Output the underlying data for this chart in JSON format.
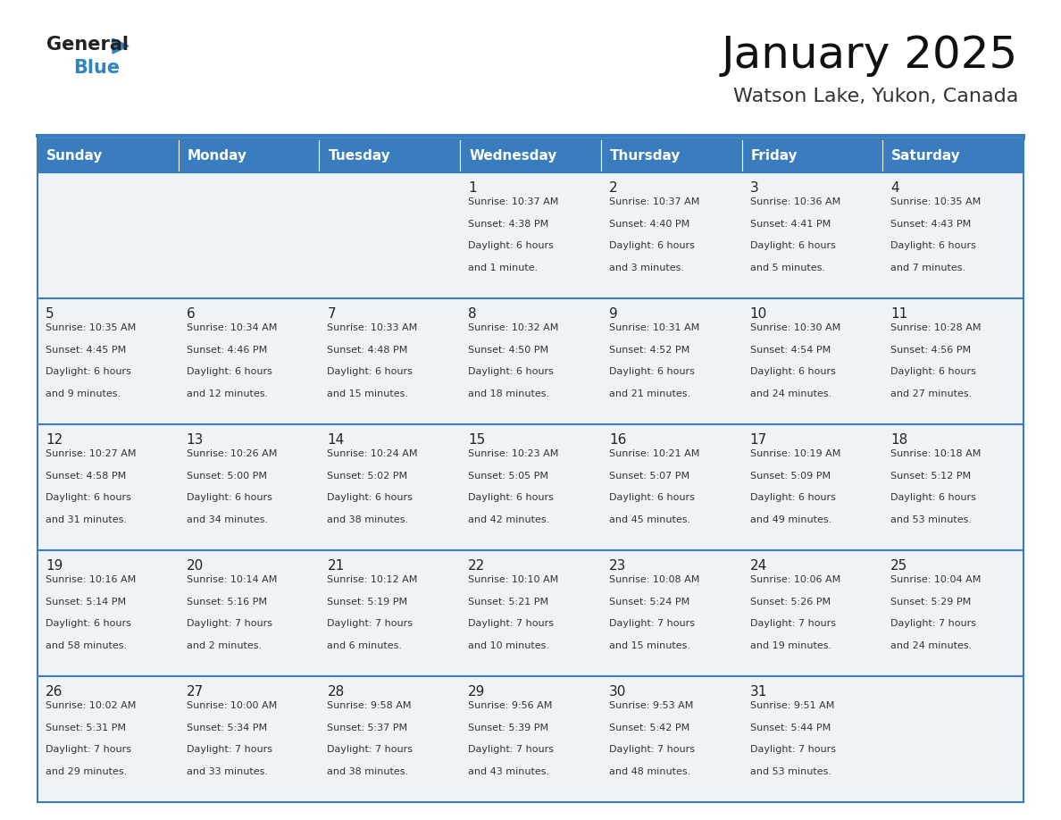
{
  "title": "January 2025",
  "subtitle": "Watson Lake, Yukon, Canada",
  "header_bg_color": "#3a7dbf",
  "header_text_color": "#ffffff",
  "day_names": [
    "Sunday",
    "Monday",
    "Tuesday",
    "Wednesday",
    "Thursday",
    "Friday",
    "Saturday"
  ],
  "cell_bg": "#eff3f8",
  "cell_bg_white": "#ffffff",
  "cell_border_color": "#3a7dbf",
  "day_num_color": "#222222",
  "text_color": "#333333",
  "title_color": "#111111",
  "subtitle_color": "#333333",
  "logo_color1": "#222222",
  "logo_color2": "#2e86c1",
  "calendar": [
    [
      null,
      null,
      null,
      {
        "day": 1,
        "sunrise": "10:37 AM",
        "sunset": "4:38 PM",
        "daylight": "6 hours\nand 1 minute."
      },
      {
        "day": 2,
        "sunrise": "10:37 AM",
        "sunset": "4:40 PM",
        "daylight": "6 hours\nand 3 minutes."
      },
      {
        "day": 3,
        "sunrise": "10:36 AM",
        "sunset": "4:41 PM",
        "daylight": "6 hours\nand 5 minutes."
      },
      {
        "day": 4,
        "sunrise": "10:35 AM",
        "sunset": "4:43 PM",
        "daylight": "6 hours\nand 7 minutes."
      }
    ],
    [
      {
        "day": 5,
        "sunrise": "10:35 AM",
        "sunset": "4:45 PM",
        "daylight": "6 hours\nand 9 minutes."
      },
      {
        "day": 6,
        "sunrise": "10:34 AM",
        "sunset": "4:46 PM",
        "daylight": "6 hours\nand 12 minutes."
      },
      {
        "day": 7,
        "sunrise": "10:33 AM",
        "sunset": "4:48 PM",
        "daylight": "6 hours\nand 15 minutes."
      },
      {
        "day": 8,
        "sunrise": "10:32 AM",
        "sunset": "4:50 PM",
        "daylight": "6 hours\nand 18 minutes."
      },
      {
        "day": 9,
        "sunrise": "10:31 AM",
        "sunset": "4:52 PM",
        "daylight": "6 hours\nand 21 minutes."
      },
      {
        "day": 10,
        "sunrise": "10:30 AM",
        "sunset": "4:54 PM",
        "daylight": "6 hours\nand 24 minutes."
      },
      {
        "day": 11,
        "sunrise": "10:28 AM",
        "sunset": "4:56 PM",
        "daylight": "6 hours\nand 27 minutes."
      }
    ],
    [
      {
        "day": 12,
        "sunrise": "10:27 AM",
        "sunset": "4:58 PM",
        "daylight": "6 hours\nand 31 minutes."
      },
      {
        "day": 13,
        "sunrise": "10:26 AM",
        "sunset": "5:00 PM",
        "daylight": "6 hours\nand 34 minutes."
      },
      {
        "day": 14,
        "sunrise": "10:24 AM",
        "sunset": "5:02 PM",
        "daylight": "6 hours\nand 38 minutes."
      },
      {
        "day": 15,
        "sunrise": "10:23 AM",
        "sunset": "5:05 PM",
        "daylight": "6 hours\nand 42 minutes."
      },
      {
        "day": 16,
        "sunrise": "10:21 AM",
        "sunset": "5:07 PM",
        "daylight": "6 hours\nand 45 minutes."
      },
      {
        "day": 17,
        "sunrise": "10:19 AM",
        "sunset": "5:09 PM",
        "daylight": "6 hours\nand 49 minutes."
      },
      {
        "day": 18,
        "sunrise": "10:18 AM",
        "sunset": "5:12 PM",
        "daylight": "6 hours\nand 53 minutes."
      }
    ],
    [
      {
        "day": 19,
        "sunrise": "10:16 AM",
        "sunset": "5:14 PM",
        "daylight": "6 hours\nand 58 minutes."
      },
      {
        "day": 20,
        "sunrise": "10:14 AM",
        "sunset": "5:16 PM",
        "daylight": "7 hours\nand 2 minutes."
      },
      {
        "day": 21,
        "sunrise": "10:12 AM",
        "sunset": "5:19 PM",
        "daylight": "7 hours\nand 6 minutes."
      },
      {
        "day": 22,
        "sunrise": "10:10 AM",
        "sunset": "5:21 PM",
        "daylight": "7 hours\nand 10 minutes."
      },
      {
        "day": 23,
        "sunrise": "10:08 AM",
        "sunset": "5:24 PM",
        "daylight": "7 hours\nand 15 minutes."
      },
      {
        "day": 24,
        "sunrise": "10:06 AM",
        "sunset": "5:26 PM",
        "daylight": "7 hours\nand 19 minutes."
      },
      {
        "day": 25,
        "sunrise": "10:04 AM",
        "sunset": "5:29 PM",
        "daylight": "7 hours\nand 24 minutes."
      }
    ],
    [
      {
        "day": 26,
        "sunrise": "10:02 AM",
        "sunset": "5:31 PM",
        "daylight": "7 hours\nand 29 minutes."
      },
      {
        "day": 27,
        "sunrise": "10:00 AM",
        "sunset": "5:34 PM",
        "daylight": "7 hours\nand 33 minutes."
      },
      {
        "day": 28,
        "sunrise": "9:58 AM",
        "sunset": "5:37 PM",
        "daylight": "7 hours\nand 38 minutes."
      },
      {
        "day": 29,
        "sunrise": "9:56 AM",
        "sunset": "5:39 PM",
        "daylight": "7 hours\nand 43 minutes."
      },
      {
        "day": 30,
        "sunrise": "9:53 AM",
        "sunset": "5:42 PM",
        "daylight": "7 hours\nand 48 minutes."
      },
      {
        "day": 31,
        "sunrise": "9:51 AM",
        "sunset": "5:44 PM",
        "daylight": "7 hours\nand 53 minutes."
      },
      null
    ]
  ]
}
